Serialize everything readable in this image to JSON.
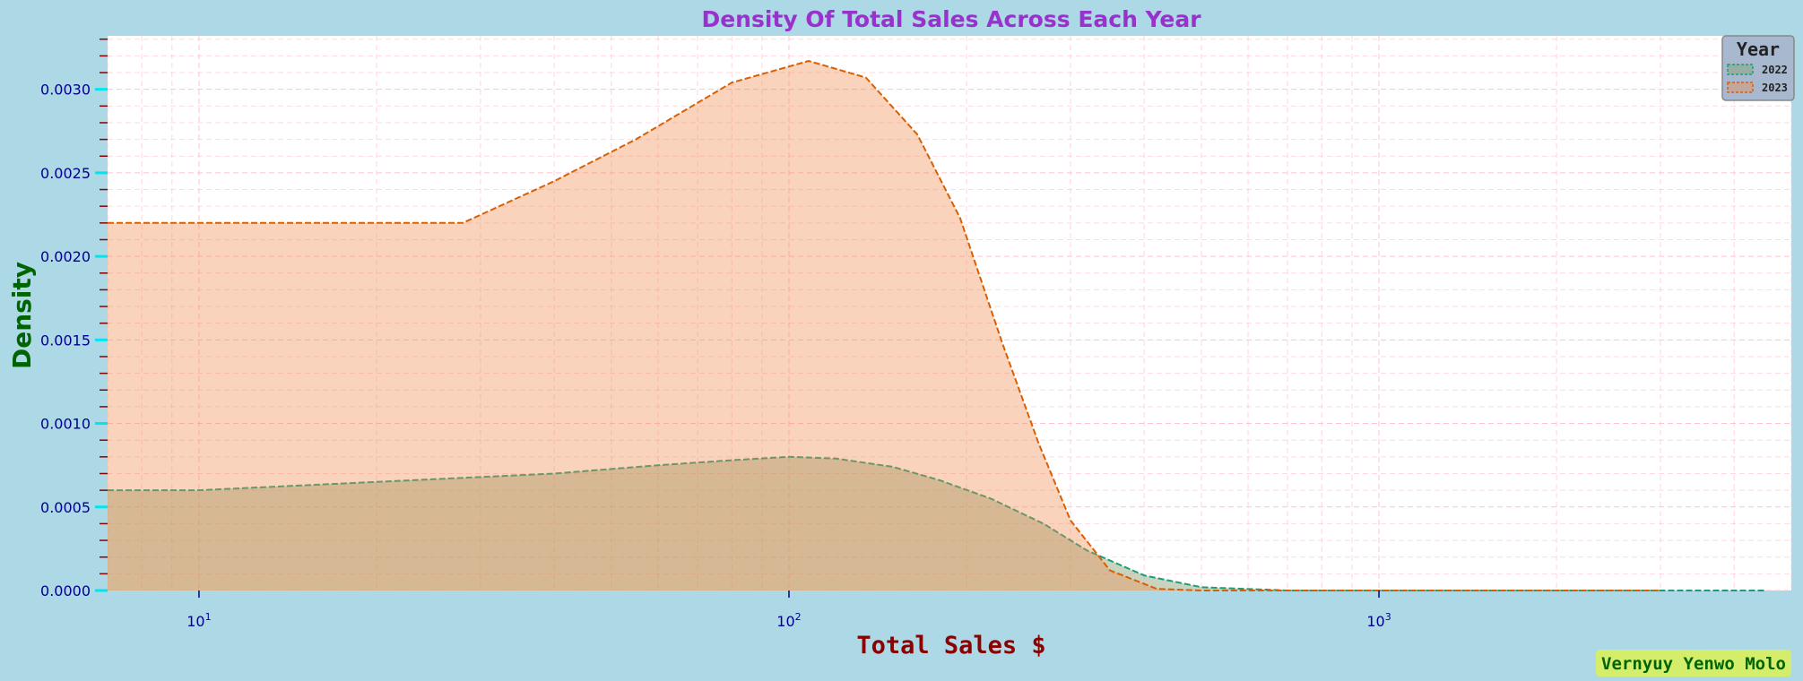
{
  "chart_data": {
    "type": "area",
    "title": "Density Of Total Sales Across Each Year",
    "xlabel": "Total Sales $",
    "ylabel": "Density",
    "x_scale": "log",
    "xlim": [
      7,
      5000
    ],
    "ylim": [
      0,
      0.00332
    ],
    "x_ticks": [
      {
        "value": 10,
        "base": "10",
        "exp": "1"
      },
      {
        "value": 100,
        "base": "10",
        "exp": "2"
      },
      {
        "value": 1000,
        "base": "10",
        "exp": "3"
      }
    ],
    "y_ticks": [
      {
        "value": 0,
        "label": "0.0000"
      },
      {
        "value": 0.0005,
        "label": "0.0005"
      },
      {
        "value": 0.001,
        "label": "0.0010"
      },
      {
        "value": 0.0015,
        "label": "0.0015"
      },
      {
        "value": 0.002,
        "label": "0.0020"
      },
      {
        "value": 0.0025,
        "label": "0.0025"
      },
      {
        "value": 0.003,
        "label": "0.0030"
      }
    ],
    "grid": true,
    "legend": {
      "title": "Year",
      "position": "top-right"
    },
    "series": [
      {
        "name": "2022",
        "color": "#1b9e77",
        "fill": "rgba(135,160,110,0.45)",
        "points": [
          [
            7,
            0.0006
          ],
          [
            10,
            0.0006
          ],
          [
            20,
            0.00065
          ],
          [
            40,
            0.0007
          ],
          [
            60,
            0.00075
          ],
          [
            80,
            0.00078
          ],
          [
            100,
            0.0008
          ],
          [
            120,
            0.00079
          ],
          [
            150,
            0.00074
          ],
          [
            180,
            0.00066
          ],
          [
            220,
            0.00055
          ],
          [
            270,
            0.0004
          ],
          [
            320,
            0.00024
          ],
          [
            400,
            9e-05
          ],
          [
            500,
            2e-05
          ],
          [
            700,
            0.0
          ],
          [
            1000,
            0.0
          ],
          [
            2000,
            0.0
          ],
          [
            4500,
            0.0
          ]
        ]
      },
      {
        "name": "2023",
        "color": "#d95f02",
        "fill": "rgba(240,140,80,0.38)",
        "points": [
          [
            7,
            0.0022
          ],
          [
            10,
            0.0022
          ],
          [
            20,
            0.0022
          ],
          [
            28,
            0.0022
          ],
          [
            40,
            0.00245
          ],
          [
            55,
            0.0027
          ],
          [
            80,
            0.00304
          ],
          [
            108,
            0.00317
          ],
          [
            135,
            0.00307
          ],
          [
            165,
            0.00273
          ],
          [
            195,
            0.00223
          ],
          [
            230,
            0.00148
          ],
          [
            265,
            0.00088
          ],
          [
            300,
            0.00042
          ],
          [
            350,
            0.00012
          ],
          [
            420,
            1e-05
          ],
          [
            500,
            0.0
          ],
          [
            1000,
            0.0
          ],
          [
            2000,
            0.0
          ],
          [
            3000,
            0.0
          ]
        ]
      }
    ]
  },
  "watermark": "Vernyuy Yenwo Molo",
  "colors": {
    "background": "#add8e6",
    "title": "#9932cc",
    "xlabel": "#8b0000",
    "ylabel": "#006400",
    "tick_label": "#00008b",
    "major_tick": "#00e5ee",
    "minor_tick": "#8b0000",
    "grid": "#ffc0cb",
    "watermark_bg": "#d4ed6a",
    "watermark_text": "#006400"
  }
}
